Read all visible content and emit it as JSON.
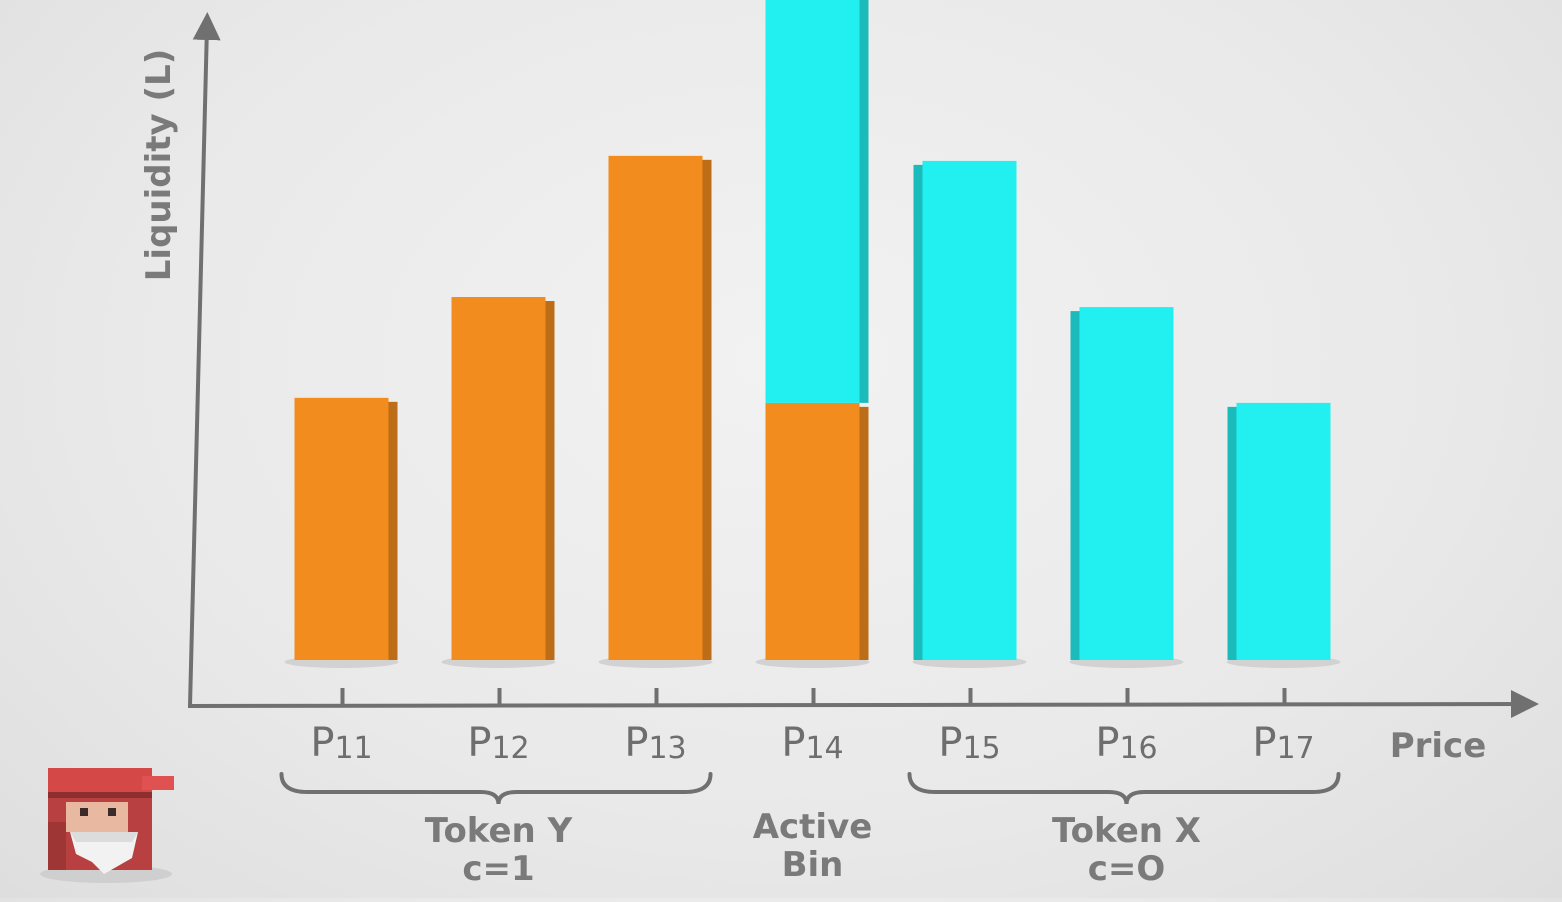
{
  "chart_data": {
    "type": "bar",
    "stacked": true,
    "categories": [
      "P11",
      "P12",
      "P13",
      "P14",
      "P15",
      "P16",
      "P17"
    ],
    "category_display": [
      {
        "base": "P",
        "sub": "11"
      },
      {
        "base": "P",
        "sub": "12"
      },
      {
        "base": "P",
        "sub": "13"
      },
      {
        "base": "P",
        "sub": "14"
      },
      {
        "base": "P",
        "sub": "15"
      },
      {
        "base": "P",
        "sub": "16"
      },
      {
        "base": "P",
        "sub": "17"
      }
    ],
    "series": [
      {
        "color": "#f28c1e",
        "values": [
          52,
          72,
          100,
          51,
          0,
          0,
          0
        ]
      },
      {
        "color": "#22f0f0",
        "values": [
          0,
          0,
          0,
          84,
          99,
          70,
          51
        ]
      }
    ],
    "xlabel": "Price",
    "ylabel": "Liquidity (L)",
    "ylim": [
      0,
      130
    ],
    "grid": false,
    "groups": [
      {
        "lines": [
          "Token Y",
          "c=1"
        ],
        "from": 0,
        "to": 2,
        "brace": true
      },
      {
        "lines": [
          "Active",
          "Bin"
        ],
        "from": 3,
        "to": 3,
        "brace": false
      },
      {
        "lines": [
          "Token X",
          "c=O"
        ],
        "from": 4,
        "to": 6,
        "brace": true
      }
    ]
  },
  "mascot": {
    "icon": "red-cap-gnome-mascot-icon"
  }
}
